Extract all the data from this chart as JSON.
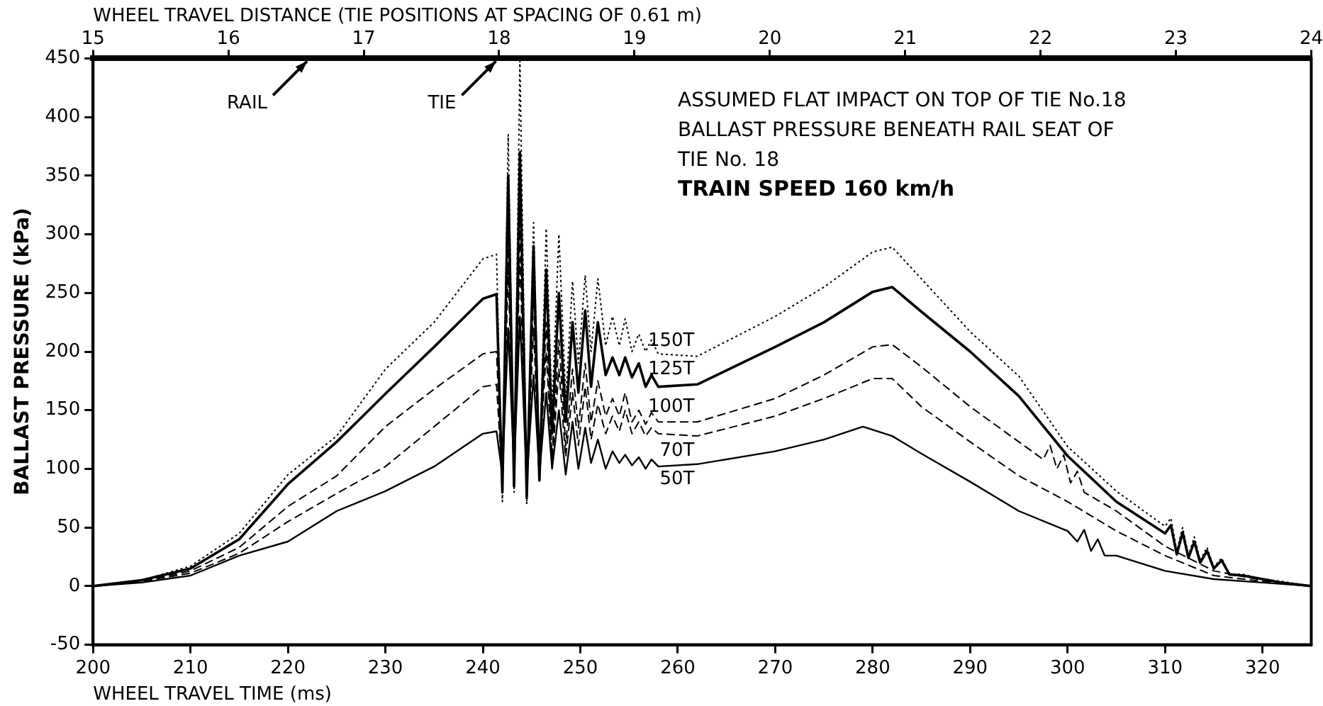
{
  "chart_data": {
    "type": "line",
    "xlabel": "WHEEL TRAVEL TIME (ms)",
    "x2label": "WHEEL TRAVEL DISTANCE (TIE POSITIONS AT SPACING OF 0.61 m)",
    "ylabel": "BALLAST PRESSURE (kPa)",
    "xlim": [
      200,
      325
    ],
    "xticks": [
      200,
      210,
      220,
      230,
      240,
      250,
      260,
      270,
      280,
      290,
      300,
      310,
      320
    ],
    "x2lim": [
      15,
      24
    ],
    "x2ticks": [
      15,
      16,
      17,
      18,
      19,
      20,
      21,
      22,
      23,
      24
    ],
    "ylim": [
      -50,
      450
    ],
    "yticks": [
      -50,
      0,
      50,
      100,
      150,
      200,
      250,
      300,
      350,
      400,
      450
    ],
    "grid": false,
    "legend": false,
    "marker": "none",
    "annotations": [
      "ASSUMED FLAT IMPACT ON TOP OF TIE No.18",
      "BALLAST PRESSURE BENEATH RAIL SEAT OF",
      "TIE No. 18",
      "TRAIN SPEED 160 km/h",
      "RAIL",
      "TIE"
    ],
    "series": [
      {
        "name": "150T",
        "color": "#000000",
        "line_style": "dotted",
        "x": [
          200,
          205,
          210,
          215,
          220,
          225,
          230,
          235,
          240,
          241.4,
          242,
          242.6,
          243.2,
          243.8,
          244.5,
          245.2,
          245.8,
          246.5,
          247.1,
          247.8,
          248.5,
          249.2,
          249.8,
          250.5,
          251.1,
          251.8,
          252.6,
          253.3,
          254,
          254.6,
          255.3,
          256,
          256.7,
          257.3,
          258,
          262,
          270,
          275,
          280,
          282,
          285,
          290,
          295,
          300,
          305,
          310,
          310.6,
          311.2,
          311.8,
          312.4,
          313,
          313.6,
          314.3,
          315,
          315.8,
          316.6,
          318,
          320,
          322,
          325
        ],
        "values": [
          0,
          5,
          17,
          45,
          95,
          128,
          185,
          225,
          279,
          283,
          72,
          385,
          80,
          448,
          70,
          310,
          95,
          305,
          150,
          300,
          160,
          260,
          190,
          265,
          200,
          262,
          205,
          230,
          205,
          228,
          200,
          215,
          200,
          210,
          198,
          196,
          230,
          255,
          285,
          289,
          262,
          217,
          179,
          119,
          81,
          51,
          58,
          30,
          50,
          26,
          42,
          22,
          33,
          16,
          24,
          10,
          10,
          6,
          4,
          0
        ]
      },
      {
        "name": "125T",
        "color": "#000000",
        "line_style": "solid",
        "x": [
          200,
          205,
          210,
          215,
          220,
          225,
          230,
          235,
          240,
          241.4,
          242,
          242.6,
          243.2,
          243.8,
          244.5,
          245.2,
          245.8,
          246.5,
          247.1,
          247.8,
          248.5,
          249.2,
          249.8,
          250.5,
          251.1,
          251.8,
          252.6,
          253.3,
          254,
          254.6,
          255.3,
          256,
          256.7,
          257.3,
          258,
          262,
          270,
          275,
          280,
          282,
          285,
          290,
          295,
          300,
          305,
          310,
          310.6,
          311.2,
          311.8,
          312.4,
          313,
          313.6,
          314.3,
          315,
          315.8,
          316.6,
          318,
          320,
          322,
          325
        ],
        "values": [
          0,
          5,
          15,
          40,
          87,
          123,
          164,
          204,
          245,
          249,
          80,
          350,
          85,
          370,
          75,
          290,
          90,
          270,
          130,
          250,
          140,
          225,
          165,
          235,
          170,
          225,
          180,
          195,
          180,
          195,
          178,
          190,
          170,
          180,
          170,
          172,
          204,
          225,
          251,
          255,
          234,
          200,
          162,
          111,
          72,
          45,
          52,
          27,
          46,
          24,
          38,
          20,
          30,
          15,
          22,
          10,
          9,
          6,
          3,
          0
        ]
      },
      {
        "name": "100T",
        "color": "#000000",
        "line_style": "dashed",
        "x": [
          200,
          205,
          210,
          215,
          220,
          225,
          230,
          235,
          240,
          241.4,
          242,
          242.6,
          243.2,
          243.8,
          244.5,
          245.2,
          245.8,
          246.5,
          247.1,
          247.8,
          248.5,
          249.2,
          249.8,
          250.5,
          251.1,
          251.8,
          252.6,
          253.3,
          254,
          254.6,
          255.3,
          256,
          256.7,
          257.3,
          258,
          262,
          270,
          275,
          280,
          282,
          285,
          290,
          295,
          297.5,
          298.2,
          298.9,
          299.6,
          300.3,
          301,
          301.7,
          305,
          310,
          315,
          320,
          325
        ],
        "values": [
          0,
          4,
          13,
          33,
          68,
          94,
          136,
          168,
          198,
          200,
          85,
          300,
          90,
          310,
          80,
          250,
          95,
          225,
          110,
          210,
          120,
          185,
          135,
          190,
          140,
          175,
          145,
          160,
          145,
          165,
          140,
          150,
          138,
          148,
          140,
          140,
          160,
          180,
          204,
          206,
          187,
          153,
          123,
          108,
          120,
          100,
          112,
          88,
          98,
          80,
          64,
          34,
          13,
          5,
          0
        ]
      },
      {
        "name": "70T",
        "color": "#000000",
        "line_style": "dashed",
        "x": [
          200,
          205,
          210,
          215,
          220,
          225,
          230,
          235,
          240,
          241.4,
          242,
          242.6,
          243.2,
          243.8,
          244.5,
          245.2,
          245.8,
          246.5,
          247.1,
          247.8,
          248.5,
          249.2,
          249.8,
          250.5,
          251.1,
          251.8,
          252.6,
          253.3,
          254,
          254.6,
          255.3,
          256,
          256.7,
          257.3,
          258,
          262,
          270,
          275,
          280,
          282,
          285,
          290,
          295,
          300,
          305,
          310,
          315,
          320,
          325
        ],
        "values": [
          0,
          4,
          11,
          28,
          55,
          79,
          102,
          136,
          170,
          172,
          90,
          270,
          95,
          280,
          85,
          220,
          100,
          200,
          105,
          185,
          110,
          165,
          120,
          170,
          125,
          155,
          130,
          145,
          132,
          150,
          130,
          140,
          128,
          135,
          130,
          128,
          145,
          160,
          177,
          177,
          153,
          123,
          94,
          72,
          47,
          26,
          9,
          4,
          0
        ]
      },
      {
        "name": "50T",
        "color": "#000000",
        "line_style": "solid",
        "x": [
          200,
          205,
          210,
          215,
          220,
          225,
          230,
          235,
          240,
          241.4,
          242,
          242.6,
          243.2,
          243.8,
          244.5,
          245.2,
          245.8,
          246.5,
          247.1,
          247.8,
          248.5,
          249.2,
          249.8,
          250.5,
          251.1,
          251.8,
          252.6,
          253.3,
          254,
          254.6,
          255.3,
          256,
          256.7,
          257.3,
          258,
          262,
          270,
          275,
          279,
          282,
          285,
          290,
          295,
          300,
          301,
          301.7,
          302.4,
          303.1,
          303.8,
          305,
          310,
          315,
          320,
          325
        ],
        "values": [
          0,
          3,
          9,
          26,
          38,
          64,
          81,
          102,
          130,
          132,
          95,
          220,
          100,
          230,
          90,
          180,
          95,
          165,
          100,
          150,
          95,
          140,
          100,
          135,
          105,
          125,
          100,
          115,
          105,
          112,
          103,
          110,
          100,
          108,
          102,
          104,
          115,
          125,
          136,
          128,
          113,
          89,
          64,
          47,
          38,
          48,
          30,
          40,
          26,
          26,
          13,
          6,
          3,
          0
        ]
      }
    ]
  }
}
